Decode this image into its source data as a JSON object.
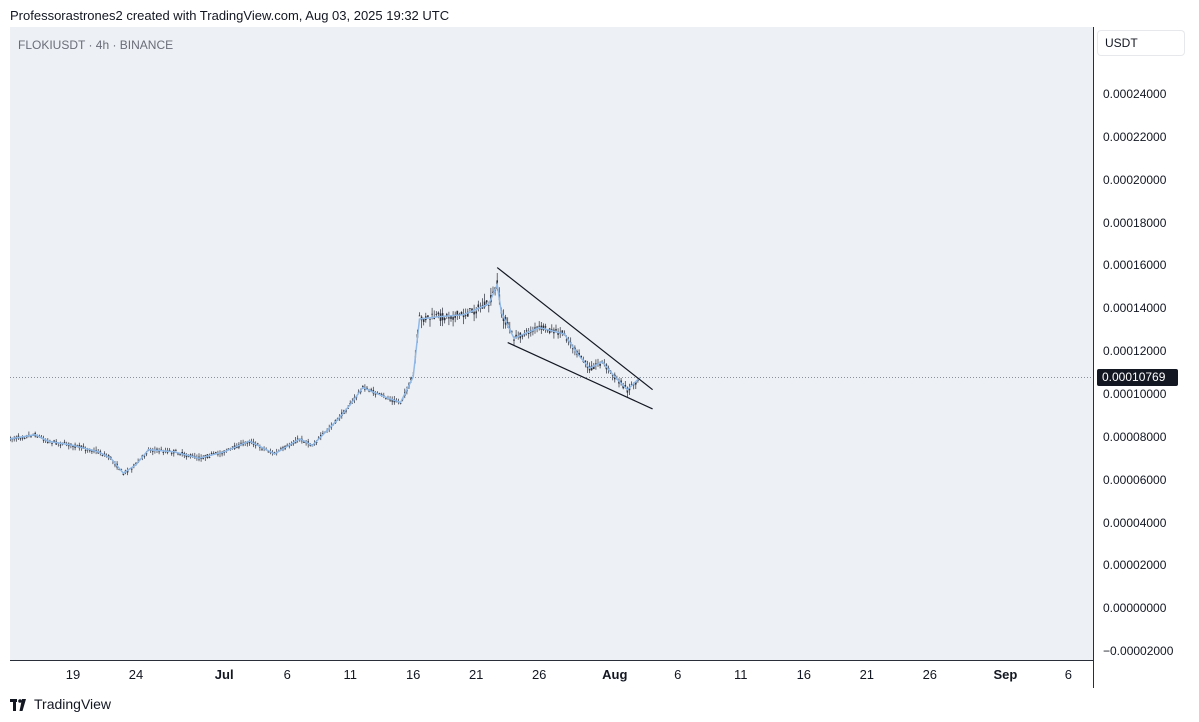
{
  "header": {
    "caption": "Professorastrones2 created with TradingView.com, Aug 03, 2025 19:32 UTC",
    "symbol_line": "FLOKIUSDT · 4h · BINANCE"
  },
  "footer": {
    "brand": "TradingView"
  },
  "colors": {
    "plot_bg": "#edf0f4",
    "candle": "#2a2e39",
    "close_line": "#8fb8e6",
    "last_price_tag": "#131722",
    "pattern_lines": "#131722"
  },
  "chart_data": {
    "type": "candlestick",
    "symbol": "FLOKIUSDT",
    "interval": "4h",
    "exchange": "BINANCE",
    "currency": "USDT",
    "last_price": "0.00010769",
    "ylim": [
      -2e-05,
      0.00026
    ],
    "y_ticks": [
      "0.00024000",
      "0.00022000",
      "0.00020000",
      "0.00018000",
      "0.00016000",
      "0.00014000",
      "0.00012000",
      "0.00010000",
      "0.00008000",
      "0.00006000",
      "0.00004000",
      "0.00002000",
      "0.00000000",
      "−0.00002000"
    ],
    "y_tick_values": [
      0.00024,
      0.00022,
      0.0002,
      0.00018,
      0.00016,
      0.00014,
      0.00012,
      0.0001,
      8e-05,
      6e-05,
      4e-05,
      2e-05,
      0,
      -2e-05
    ],
    "x_ticks": [
      {
        "label": "19",
        "date": "2025-06-19",
        "bold": false
      },
      {
        "label": "24",
        "date": "2025-06-24",
        "bold": false
      },
      {
        "label": "Jul",
        "date": "2025-07-01",
        "bold": true
      },
      {
        "label": "6",
        "date": "2025-07-06",
        "bold": false
      },
      {
        "label": "11",
        "date": "2025-07-11",
        "bold": false
      },
      {
        "label": "16",
        "date": "2025-07-16",
        "bold": false
      },
      {
        "label": "21",
        "date": "2025-07-21",
        "bold": false
      },
      {
        "label": "26",
        "date": "2025-07-26",
        "bold": false
      },
      {
        "label": "Aug",
        "date": "2025-08-01",
        "bold": true
      },
      {
        "label": "6",
        "date": "2025-08-06",
        "bold": false
      },
      {
        "label": "11",
        "date": "2025-08-11",
        "bold": false
      },
      {
        "label": "16",
        "date": "2025-08-16",
        "bold": false
      },
      {
        "label": "21",
        "date": "2025-08-21",
        "bold": false
      },
      {
        "label": "26",
        "date": "2025-08-26",
        "bold": false
      },
      {
        "label": "Sep",
        "date": "2025-09-01",
        "bold": true
      },
      {
        "label": "6",
        "date": "2025-09-06",
        "bold": false
      }
    ],
    "x_range": [
      "2025-06-14",
      "2025-09-08"
    ],
    "close_path": [
      [
        "2025-06-14",
        7.9e-05
      ],
      [
        "2025-06-16",
        8.1e-05
      ],
      [
        "2025-06-17",
        7.8e-05
      ],
      [
        "2025-06-19",
        7.6e-05
      ],
      [
        "2025-06-21",
        7.3e-05
      ],
      [
        "2025-06-22",
        7e-05
      ],
      [
        "2025-06-23",
        6.3e-05
      ],
      [
        "2025-06-24",
        6.7e-05
      ],
      [
        "2025-06-25",
        7.4e-05
      ],
      [
        "2025-06-27",
        7.3e-05
      ],
      [
        "2025-06-29",
        7e-05
      ],
      [
        "2025-07-01",
        7.3e-05
      ],
      [
        "2025-07-03",
        7.8e-05
      ],
      [
        "2025-07-05",
        7.2e-05
      ],
      [
        "2025-07-07",
        7.9e-05
      ],
      [
        "2025-07-08",
        7.6e-05
      ],
      [
        "2025-07-10",
        8.8e-05
      ],
      [
        "2025-07-11",
        9.5e-05
      ],
      [
        "2025-07-12",
        0.000103
      ],
      [
        "2025-07-14",
        9.8e-05
      ],
      [
        "2025-07-15",
        9.6e-05
      ],
      [
        "2025-07-16",
        0.000108
      ],
      [
        "2025-07-16T12",
        0.000135
      ],
      [
        "2025-07-18",
        0.000136
      ],
      [
        "2025-07-20",
        0.000137
      ],
      [
        "2025-07-22",
        0.000142
      ],
      [
        "2025-07-22T16",
        0.000151
      ],
      [
        "2025-07-23",
        0.000138
      ],
      [
        "2025-07-24",
        0.000126
      ],
      [
        "2025-07-26",
        0.000131
      ],
      [
        "2025-07-28",
        0.000128
      ],
      [
        "2025-07-29",
        0.000119
      ],
      [
        "2025-07-30",
        0.000112
      ],
      [
        "2025-07-31",
        0.000115
      ],
      [
        "2025-08-01",
        0.000108
      ],
      [
        "2025-08-02",
        0.000102
      ],
      [
        "2025-08-03",
        0.00010769
      ]
    ],
    "falling_wedge": {
      "upper": [
        [
          "2025-07-22T16",
          0.000159
        ],
        [
          "2025-08-04",
          0.000102
        ]
      ],
      "lower": [
        [
          "2025-07-23T12",
          0.000124
        ],
        [
          "2025-08-04",
          9.3e-05
        ]
      ]
    }
  }
}
